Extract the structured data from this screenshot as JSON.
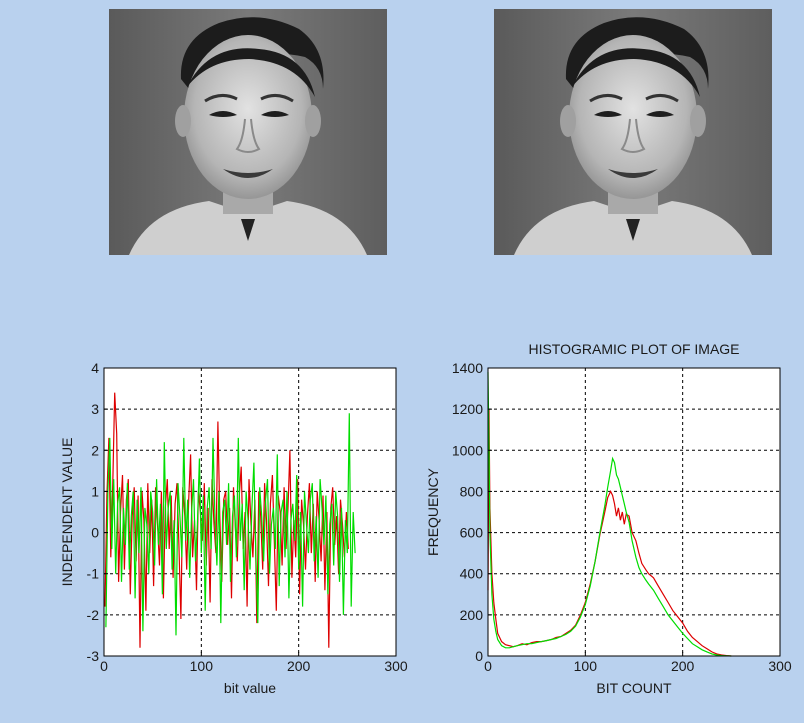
{
  "chart_data": [
    {
      "type": "line",
      "title": "",
      "xlabel": "bit value",
      "ylabel": "INDEPENDENT VALUE",
      "xlim": [
        0,
        300
      ],
      "ylim": [
        -3,
        4
      ],
      "x_ticks": [
        0,
        100,
        200,
        300
      ],
      "y_ticks": [
        -3,
        -2,
        -1,
        0,
        1,
        2,
        3,
        4
      ],
      "grid": true,
      "series": [
        {
          "color": "#dd0000",
          "x_start": 1,
          "x_step": 2,
          "values": [
            -1.8,
            0.9,
            2.3,
            -0.6,
            1.2,
            3.4,
            2.4,
            -1.2,
            0.5,
            1.4,
            -0.9,
            0.8,
            1.3,
            -1.5,
            0.4,
            1.1,
            -0.7,
            0.9,
            -2.8,
            1.0,
            0.3,
            -1.9,
            1.2,
            -0.5,
            0.8,
            -1.3,
            1.1,
            0.2,
            -0.8,
            1.0,
            -1.6,
            0.6,
            1.3,
            -0.4,
            0.9,
            -1.1,
            0.7,
            1.2,
            -0.3,
            -2.1,
            1.1,
            0.4,
            -0.9,
            0.8,
            1.9,
            -0.6,
            0.3,
            -1.4,
            1.0,
            0.5,
            -0.2,
            1.2,
            -0.8,
            0.6,
            -1.7,
            1.3,
            0.2,
            -0.5,
            2.7,
            0.4,
            -1.2,
            0.8,
            1.0,
            -0.3,
            0.6,
            -1.6,
            1.1,
            0.1,
            -0.7,
            0.9,
            1.6,
            -0.4,
            0.5,
            -1.8,
            1.3,
            0.2,
            -0.6,
            0.8,
            -2.2,
            1.0,
            0.4,
            -0.9,
            1.2,
            0.3,
            -1.3,
            0.7,
            1.4,
            -0.2,
            -1.9,
            0.9,
            0.5,
            -0.8,
            1.1,
            -0.4,
            0.6,
            2.0,
            -1.1,
            0.3,
            -0.6,
            1.3,
            -1.5,
            0.8,
            0.2,
            -0.9,
            0.4,
            1.2,
            -0.5,
            0.7,
            -1.2,
            1.0,
            0.3,
            -0.7,
            0.9,
            -1.4,
            0.5,
            -2.8,
            0.6,
            1.1,
            -0.3,
            0.4,
            -1.0,
            0.8,
            0.2,
            -0.6,
            0.5,
            -0.4
          ]
        },
        {
          "color": "#00dd00",
          "x_start": 2,
          "x_step": 2,
          "values": [
            -2.3,
            1.0,
            2.3,
            -0.4,
            1.3,
            -1.0,
            0.7,
            1.1,
            -1.2,
            0.6,
            -0.3,
            1.2,
            -0.9,
            0.4,
            1.0,
            -1.6,
            0.8,
            -0.5,
            1.1,
            -2.4,
            0.6,
            0.2,
            -1.0,
            1.0,
            0.5,
            -0.8,
            1.3,
            -0.3,
            0.7,
            -1.5,
            2.2,
            -0.4,
            0.6,
            1.0,
            -0.9,
            0.3,
            -2.5,
            1.2,
            0.4,
            -0.6,
            2.3,
            -0.2,
            0.8,
            -1.1,
            0.5,
            1.3,
            -0.7,
            0.2,
            1.8,
            -0.5,
            0.9,
            -1.9,
            0.6,
            1.1,
            -0.4,
            2.3,
            0.3,
            -0.8,
            1.0,
            -2.2,
            0.5,
            0.8,
            -0.3,
            1.2,
            -1.2,
            0.4,
            0.9,
            -0.6,
            2.3,
            -0.2,
            0.7,
            -1.4,
            1.0,
            0.3,
            -0.9,
            0.6,
            1.7,
            -0.5,
            -2.2,
            1.1,
            0.4,
            -0.7,
            0.8,
            1.3,
            -1.0,
            0.2,
            0.6,
            -0.4,
            1.9,
            -1.3,
            0.5,
            0.8,
            -0.6,
            1.0,
            -1.6,
            0.3,
            0.7,
            -0.2,
            1.4,
            -0.9,
            0.5,
            -1.8,
            1.0,
            0.2,
            -0.5,
            0.8,
            1.2,
            -0.7,
            0.4,
            -1.1,
            1.3,
            0.6,
            -0.3,
            0.9,
            -1.5,
            0.2,
            0.7,
            -0.8,
            1.0,
            0.4,
            -1.2,
            0.6,
            -2.0,
            0.3,
            -0.5,
            2.9,
            -1.8,
            0.5,
            -0.5
          ]
        }
      ]
    },
    {
      "type": "line",
      "title": "HISTOGRAMIC PLOT OF IMAGE",
      "xlabel": "BIT COUNT",
      "ylabel": "FREQUENCY",
      "xlim": [
        0,
        300
      ],
      "ylim": [
        0,
        1400
      ],
      "x_ticks": [
        0,
        100,
        200,
        300
      ],
      "y_ticks": [
        0,
        200,
        400,
        600,
        800,
        1000,
        1200,
        1400
      ],
      "grid": true,
      "series": [
        {
          "color": "#dd0000",
          "x": [
            0,
            1,
            2,
            4,
            6,
            8,
            10,
            14,
            18,
            22,
            26,
            30,
            35,
            40,
            45,
            50,
            55,
            60,
            65,
            70,
            75,
            80,
            85,
            90,
            95,
            100,
            105,
            110,
            115,
            120,
            123,
            126,
            128,
            130,
            132,
            134,
            136,
            138,
            140,
            142,
            145,
            148,
            152,
            155,
            158,
            162,
            165,
            170,
            175,
            180,
            185,
            190,
            195,
            200,
            205,
            210,
            215,
            220,
            225,
            230,
            235,
            240,
            245,
            250
          ],
          "values": [
            320,
            1200,
            720,
            400,
            260,
            180,
            110,
            70,
            55,
            50,
            45,
            50,
            60,
            55,
            65,
            70,
            70,
            75,
            80,
            90,
            95,
            110,
            125,
            150,
            200,
            260,
            350,
            460,
            590,
            700,
            770,
            800,
            780,
            740,
            680,
            720,
            660,
            700,
            640,
            690,
            680,
            600,
            560,
            500,
            450,
            420,
            400,
            380,
            340,
            300,
            260,
            220,
            190,
            160,
            120,
            90,
            70,
            50,
            35,
            20,
            10,
            5,
            2,
            0
          ]
        },
        {
          "color": "#00dd00",
          "x": [
            0,
            1,
            2,
            4,
            6,
            8,
            10,
            14,
            18,
            22,
            26,
            30,
            35,
            40,
            45,
            50,
            55,
            60,
            65,
            70,
            75,
            80,
            85,
            90,
            95,
            100,
            105,
            110,
            115,
            120,
            123,
            126,
            128,
            130,
            132,
            134,
            136,
            138,
            140,
            142,
            145,
            148,
            152,
            155,
            158,
            162,
            165,
            170,
            175,
            180,
            185,
            190,
            195,
            200,
            205,
            210,
            215,
            220,
            225,
            230,
            235,
            240,
            245,
            250
          ],
          "values": [
            1380,
            1000,
            600,
            300,
            180,
            120,
            80,
            50,
            40,
            40,
            45,
            50,
            55,
            60,
            60,
            65,
            70,
            75,
            80,
            85,
            95,
            105,
            120,
            145,
            190,
            250,
            340,
            460,
            600,
            730,
            820,
            900,
            960,
            940,
            880,
            860,
            820,
            780,
            740,
            700,
            650,
            560,
            480,
            430,
            400,
            370,
            350,
            320,
            280,
            240,
            200,
            170,
            140,
            110,
            85,
            60,
            45,
            30,
            20,
            10,
            5,
            2,
            1,
            0
          ]
        }
      ]
    }
  ]
}
